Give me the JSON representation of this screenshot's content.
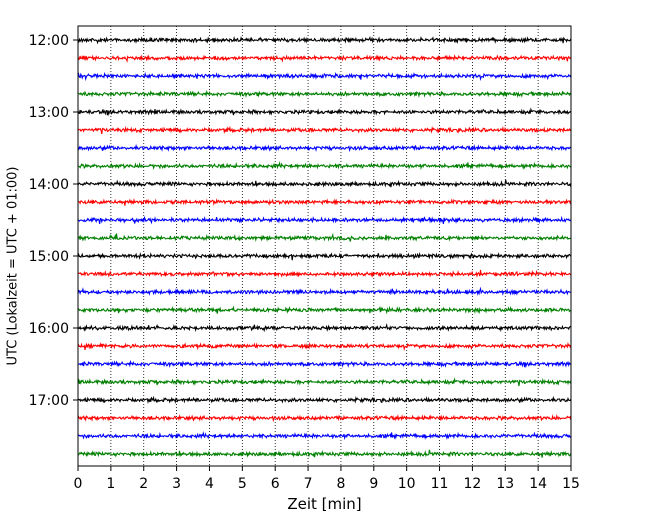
{
  "chart_data": {
    "type": "line",
    "title": "",
    "xlabel": "Zeit  [min]",
    "ylabel": "UTC (Lokalzeit = UTC + 01:00)",
    "xlim": [
      0,
      15
    ],
    "x_ticks": [
      0,
      1,
      2,
      3,
      4,
      5,
      6,
      7,
      8,
      9,
      10,
      11,
      12,
      13,
      14,
      15
    ],
    "y_tick_labels": [
      "12:00",
      "13:00",
      "14:00",
      "15:00",
      "16:00",
      "17:00"
    ],
    "y_tick_times_utc": [
      "12:00",
      "13:00",
      "14:00",
      "15:00",
      "16:00",
      "17:00"
    ],
    "trace_start_times_utc": [
      "12:00",
      "12:15",
      "12:30",
      "12:45",
      "13:00",
      "13:15",
      "13:30",
      "13:45",
      "14:00",
      "14:15",
      "14:30",
      "14:45",
      "15:00",
      "15:15",
      "15:30",
      "15:45",
      "16:00",
      "16:15",
      "16:30",
      "16:45",
      "17:00",
      "17:15",
      "17:30",
      "17:45"
    ],
    "trace_color_cycle": [
      "#000000",
      "#ff0000",
      "#0000ff",
      "#008000"
    ],
    "trace_minutes_per_line": 15,
    "grid": "vertical dotted lines at every minute",
    "legend": "none"
  }
}
